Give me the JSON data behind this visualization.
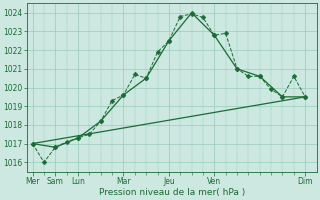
{
  "bg_color": "#cce8e0",
  "grid_color": "#99ccbb",
  "line_color": "#1a6b35",
  "xlabel": "Pression niveau de la mer( hPa )",
  "ylim": [
    1015.5,
    1024.5
  ],
  "yticks": [
    1016,
    1017,
    1018,
    1019,
    1020,
    1021,
    1022,
    1023,
    1024
  ],
  "series1_x": [
    0,
    1,
    2,
    3,
    4,
    5,
    6,
    7,
    8,
    9,
    10,
    11,
    12,
    13,
    14,
    15,
    16,
    17,
    18,
    19,
    20,
    21,
    22,
    23,
    24
  ],
  "series1_y": [
    1017.0,
    1016.0,
    1016.8,
    1017.1,
    1017.3,
    1017.5,
    1018.2,
    1019.3,
    1019.6,
    1020.7,
    1020.5,
    1021.9,
    1022.5,
    1023.8,
    1023.95,
    1023.75,
    1022.8,
    1022.9,
    1021.0,
    1020.6,
    1020.6,
    1019.9,
    1019.5,
    1020.6,
    1019.5
  ],
  "series2_x": [
    0,
    2,
    4,
    6,
    8,
    10,
    12,
    14,
    16,
    18,
    20,
    22,
    24
  ],
  "series2_y": [
    1017.0,
    1016.8,
    1017.3,
    1018.2,
    1019.6,
    1020.5,
    1022.5,
    1024.0,
    1022.8,
    1021.0,
    1020.6,
    1019.5,
    1019.5
  ],
  "series3_x": [
    0,
    24
  ],
  "series3_y": [
    1017.0,
    1019.5
  ],
  "major_xtick_pos": [
    0,
    2,
    4,
    8,
    12,
    16,
    24
  ],
  "major_xlabels": [
    "Mer",
    "Sam",
    "Lun",
    "Mar",
    "Jeu",
    "Ven",
    "Dim"
  ],
  "xlim": [
    -0.5,
    25
  ]
}
